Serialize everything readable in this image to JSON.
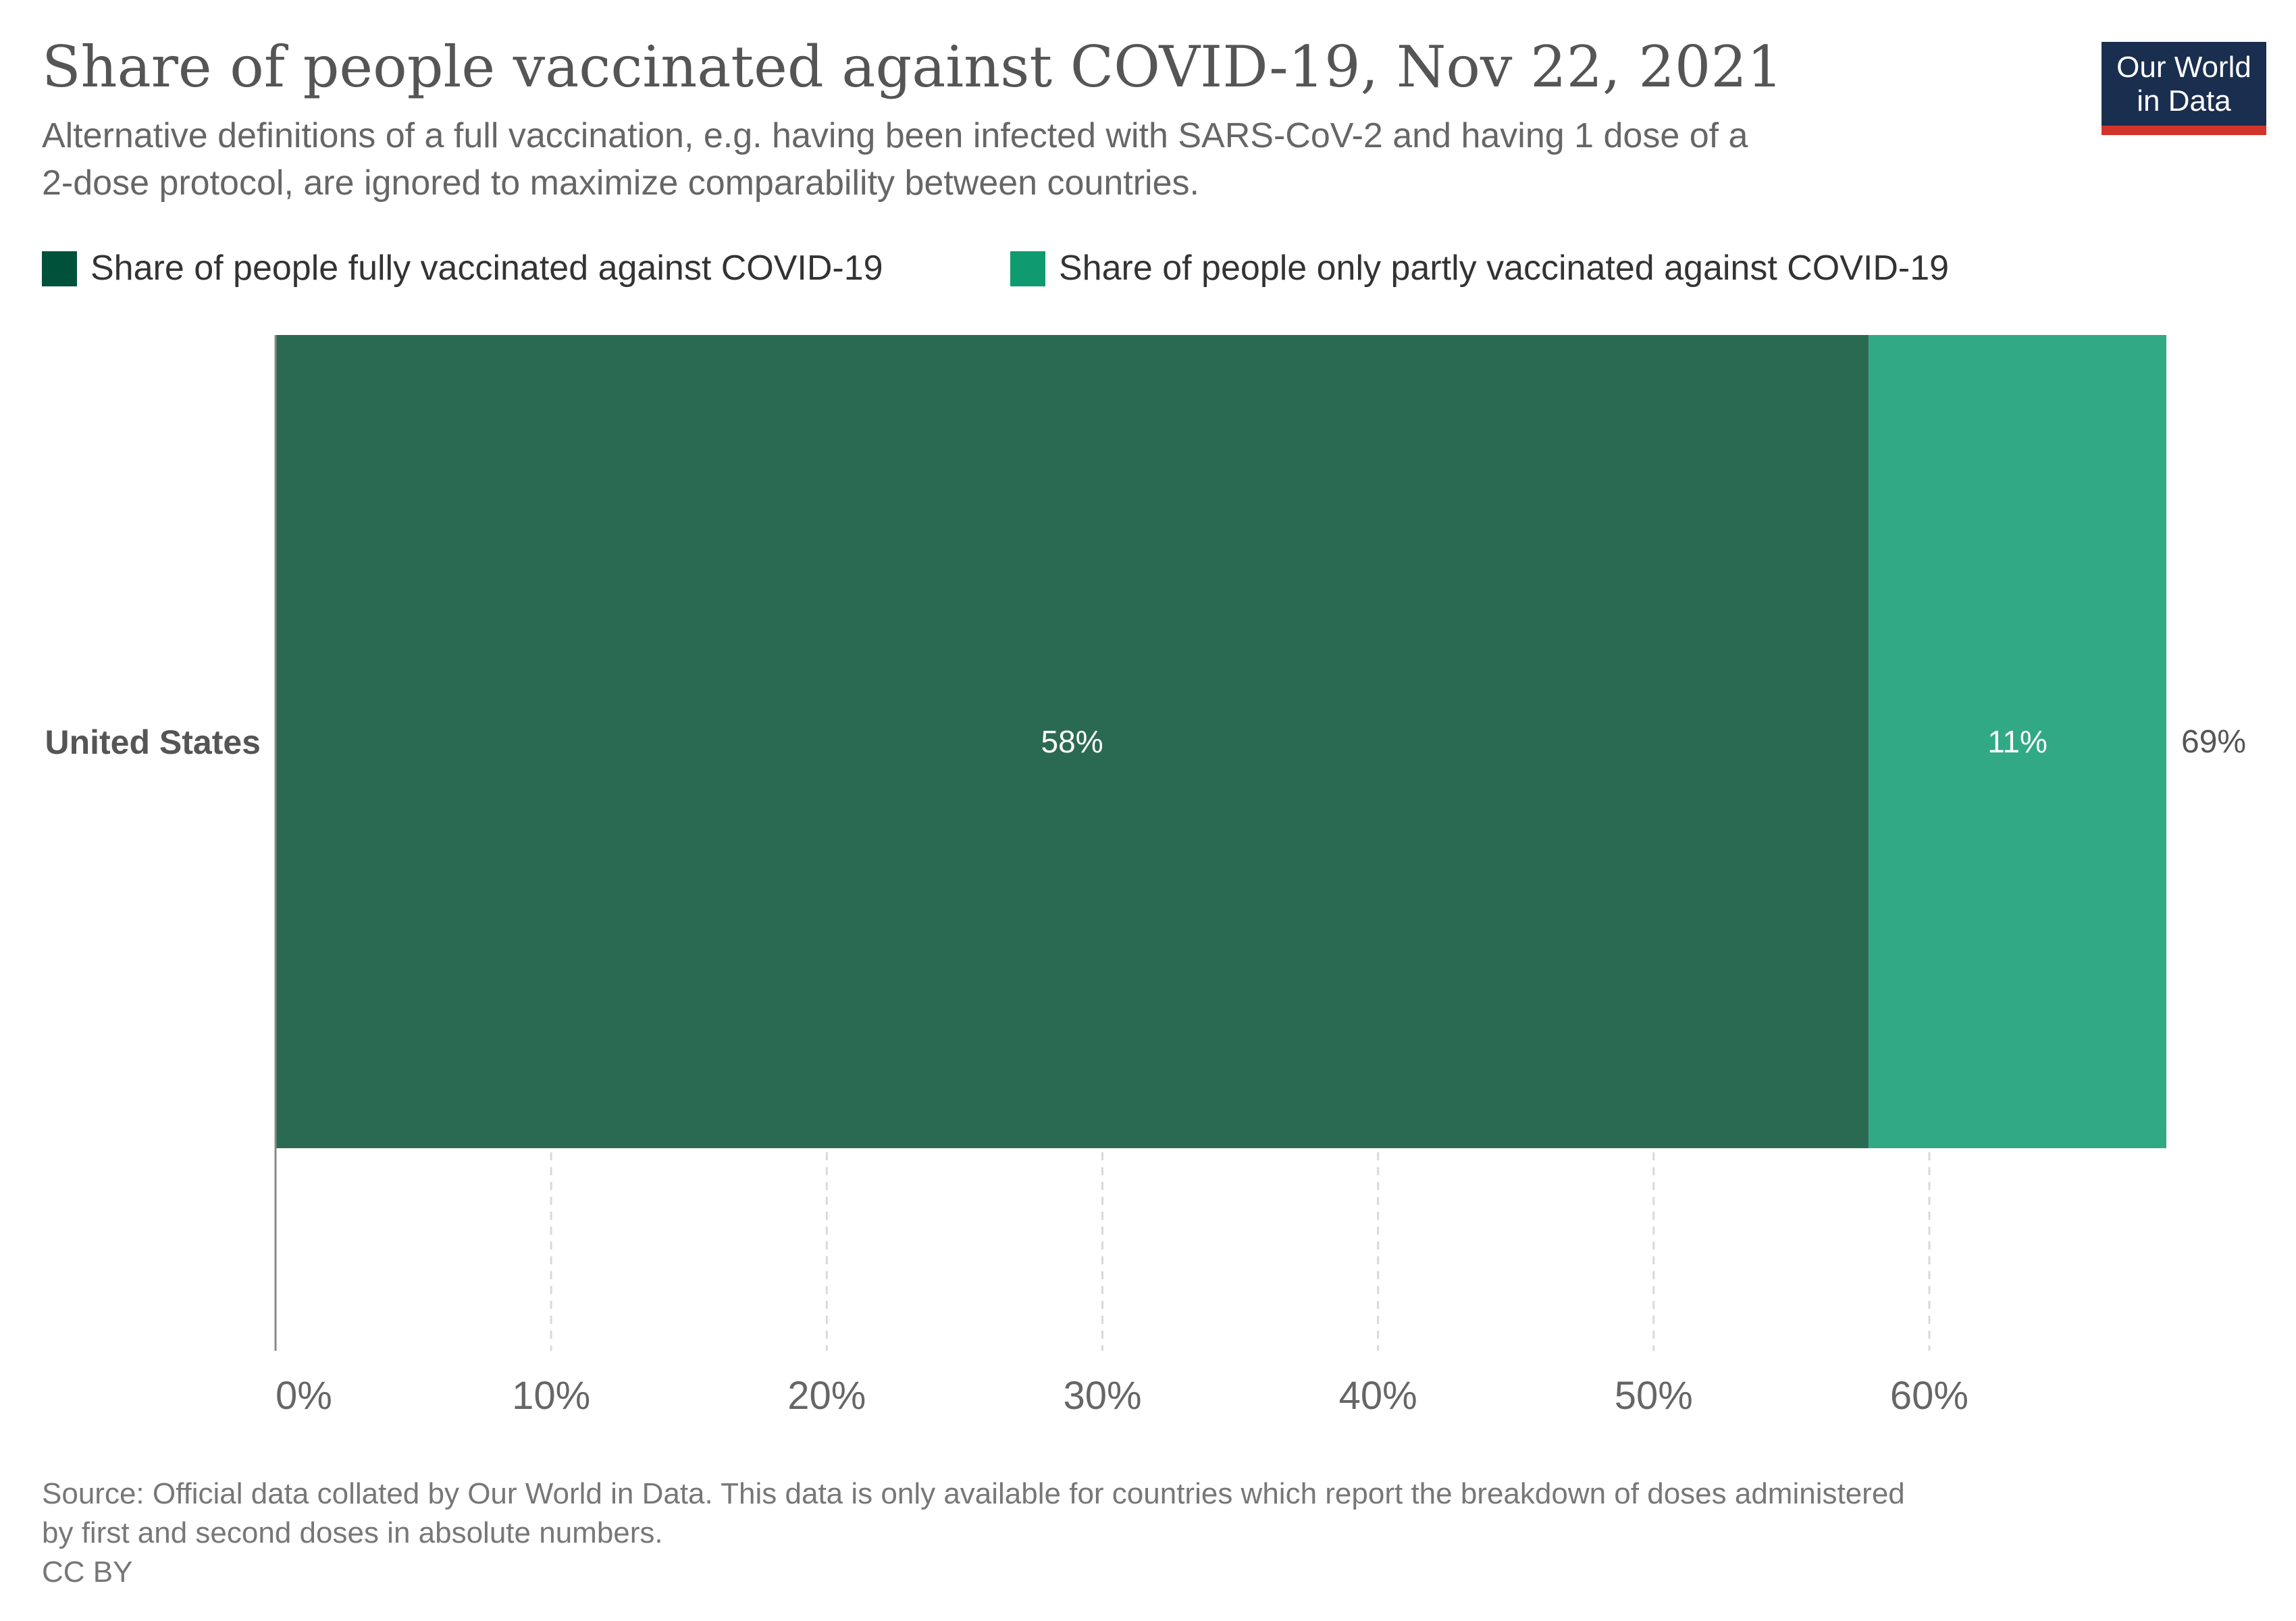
{
  "header": {
    "title": "Share of people vaccinated against COVID-19, Nov 22, 2021",
    "subtitle_lines": [
      "Alternative definitions of a full vaccination, e.g. having been infected with SARS-CoV-2 and having 1 dose of a",
      "2-dose protocol, are ignored to maximize comparability between countries."
    ]
  },
  "logo": {
    "lines": [
      "Our World",
      "in Data"
    ],
    "bg_color": "#1a2e4f",
    "accent_color": "#d1342b"
  },
  "chart_data": {
    "type": "bar",
    "orientation": "horizontal",
    "stacked": true,
    "categories": [
      "United States"
    ],
    "series": [
      {
        "name": "Share of people fully vaccinated against COVID-19",
        "values": [
          57.8
        ],
        "label": "58%",
        "color": "#2b6a52",
        "legend_color": "#00513a"
      },
      {
        "name": "Share of people only partly vaccinated against COVID-19",
        "values": [
          10.8
        ],
        "label": "11%",
        "color": "#31a985",
        "legend_color": "#0f9b6f"
      }
    ],
    "totals": [
      "69%"
    ],
    "xlim": [
      0,
      68.6
    ],
    "xticks": [
      0,
      10,
      20,
      30,
      40,
      50,
      60
    ],
    "xtick_labels": [
      "0%",
      "10%",
      "20%",
      "30%",
      "40%",
      "50%",
      "60%"
    ],
    "grid": true,
    "legend_position": "top-left"
  },
  "footer": {
    "source_lines": [
      "Source: Official data collated by Our World in Data. This data is only available for countries which report the breakdown of doses administered",
      "by first and second doses in absolute numbers."
    ],
    "license": "CC BY"
  }
}
